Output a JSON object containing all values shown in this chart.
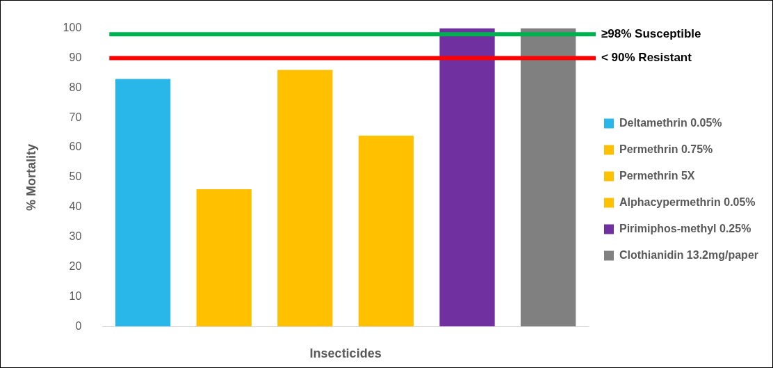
{
  "chart_data": {
    "type": "bar",
    "xlabel": "Insecticides",
    "ylabel": "% Mortality",
    "categories": [
      null,
      null,
      null,
      null,
      null,
      null
    ],
    "series": [
      {
        "name": "Deltamethrin 0.05%",
        "color": "#29b6e8",
        "values": [
          83,
          null,
          null,
          null,
          null,
          null
        ]
      },
      {
        "name": "Permethrin 0.75%",
        "color": "#ffc000",
        "values": [
          null,
          46,
          null,
          null,
          null,
          null
        ]
      },
      {
        "name": "Permethrin 5X",
        "color": "#ffc000",
        "values": [
          null,
          null,
          86,
          null,
          null,
          null
        ]
      },
      {
        "name": "Alphacypermethrin 0.05%",
        "color": "#ffc000",
        "values": [
          null,
          null,
          null,
          64,
          null,
          null
        ]
      },
      {
        "name": "Pirimiphos-methyl 0.25%",
        "color": "#7030a0",
        "values": [
          null,
          null,
          null,
          null,
          100,
          null
        ]
      },
      {
        "name": "Clothianidin 13.2mg/paper",
        "color": "#808080",
        "values": [
          null,
          null,
          null,
          null,
          null,
          100
        ]
      }
    ],
    "ylim": [
      0,
      100
    ],
    "yticks": [
      0,
      10,
      20,
      30,
      40,
      50,
      60,
      70,
      80,
      90,
      100
    ],
    "ref_lines": [
      {
        "axis": "y",
        "value": 98,
        "label": "≥98% Susceptible",
        "color": "#00b050"
      },
      {
        "axis": "y",
        "value": 90,
        "label": "< 90% Resistant",
        "color": "#ff0000"
      }
    ],
    "grid": false,
    "legend": "right"
  }
}
